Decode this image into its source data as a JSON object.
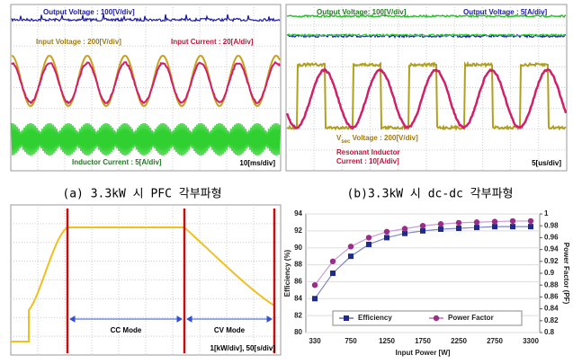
{
  "panels": [
    {
      "caption": "(a) 3.3kW 시 PFC 각부파형",
      "labels": {
        "output_voltage": "Output Voltage : 100[V/div]",
        "input_voltage": "Input Voltage : 200[V/div]",
        "input_current": "Input Current : 20[A/div]",
        "inductor_current": "Inductor Current : 5[A/div]",
        "timebase": "10[ms/div]"
      }
    },
    {
      "caption": "(b)3.3kW 시 dc-dc 각부파형",
      "labels": {
        "output_voltage": "Output Voltage: 100[V/div]",
        "output_current": "Output Voltage : 5[A/div]",
        "vsec_main": "V",
        "vsec_sub": "sec",
        "vsec_rest": " Voltage : 200[V/div]",
        "resonant_line1": "Resonant Inductor",
        "resonant_line2": "Current : 10[A/div]",
        "timebase": "5[us/div]"
      }
    },
    {
      "labels": {
        "cc": "CC Mode",
        "cv": "CV Mode",
        "scale": "1[kW/div], 50[s/div]"
      }
    }
  ],
  "chart_data": {
    "type": "line",
    "x_label": "Input Power [W]",
    "y_label": "Efficiency (%)",
    "y2_label": "Power Factor (PF)",
    "categories": [
      "330",
      null,
      "750",
      null,
      "1250",
      null,
      "1750",
      null,
      "2250",
      null,
      "2750",
      null,
      "3300"
    ],
    "ylim": [
      80,
      94
    ],
    "yticks": [
      80,
      82,
      84,
      86,
      88,
      90,
      92,
      94
    ],
    "y2lim": [
      0.8,
      1
    ],
    "y2ticks": [
      0.8,
      0.82,
      0.84,
      0.86,
      0.88,
      0.9,
      0.92,
      0.94,
      0.96,
      0.98,
      1
    ],
    "legend": "bottom",
    "series": [
      {
        "name": "Efficiency",
        "color": "#1f2a8a",
        "marker": "square",
        "values": [
          84,
          87,
          89,
          90.4,
          91.2,
          91.7,
          92,
          92.2,
          92.3,
          92.4,
          92.5,
          92.5,
          92.5
        ]
      },
      {
        "name": "Power Factor",
        "color": "#9b2d8a",
        "marker": "circle",
        "axis": "y2",
        "values": [
          0.88,
          0.92,
          0.945,
          0.96,
          0.97,
          0.975,
          0.98,
          0.983,
          0.985,
          0.986,
          0.987,
          0.988,
          0.988
        ]
      }
    ]
  }
}
